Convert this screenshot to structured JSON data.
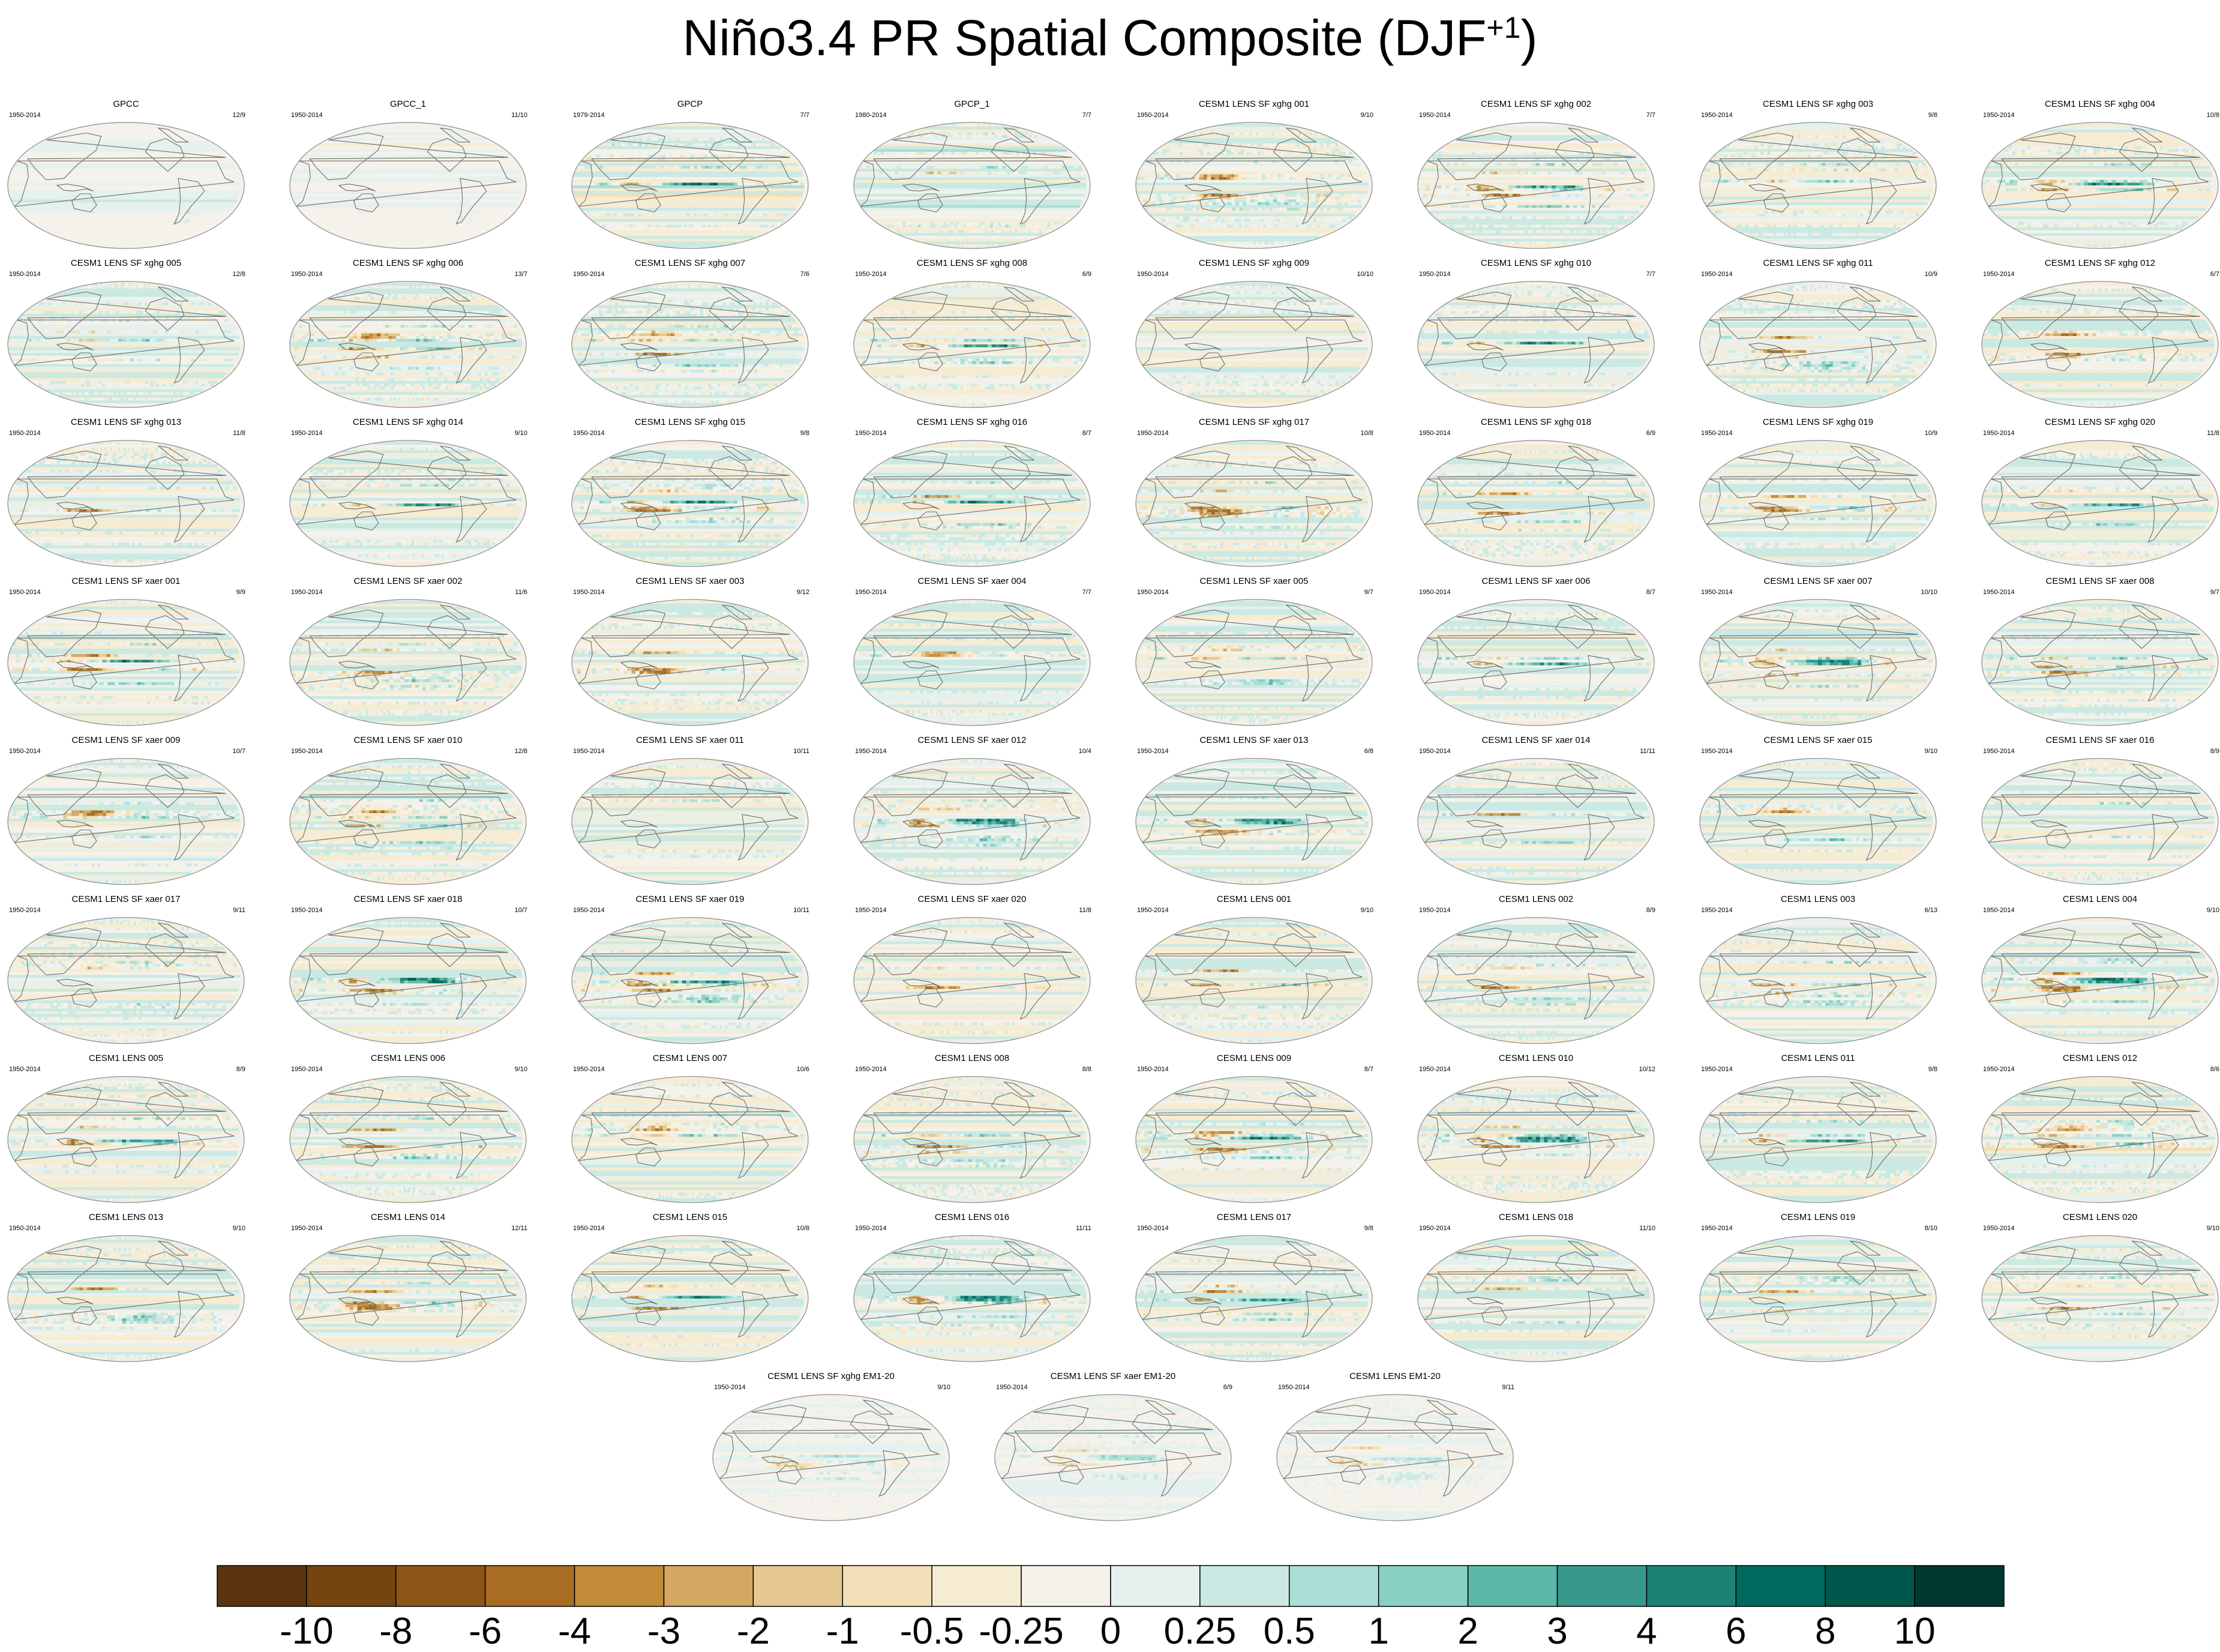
{
  "title": {
    "main": "Niño3.4 PR Spatial Composite (DJF",
    "superscript": "+1",
    "close": ")"
  },
  "chart_data": {
    "type": "heatmap",
    "description_variable": "PR composite",
    "colorbar": {
      "labels": [
        "-10",
        "-8",
        "-6",
        "-4",
        "-3",
        "-2",
        "-1",
        "-0.5",
        "-0.25",
        "0",
        "0.25",
        "0.5",
        "1",
        "2",
        "3",
        "4",
        "6",
        "8",
        "10"
      ],
      "colors": [
        "#5a3410",
        "#744411",
        "#8e5616",
        "#a86d22",
        "#c18b3a",
        "#d4a862",
        "#e4c88f",
        "#f1dfb7",
        "#f6ecd3",
        "#f4f2ea",
        "#e5f1ee",
        "#cbe9e3",
        "#aadfd6",
        "#89d0c4",
        "#5db8aa",
        "#36998c",
        "#1d8276",
        "#006a5e",
        "#00574c",
        "#00382f"
      ]
    },
    "panels": [
      {
        "title": "GPCC",
        "period": "1950-2014",
        "ratio": "12/9",
        "obs_land": true
      },
      {
        "title": "GPCC_1",
        "period": "1950-2014",
        "ratio": "11/10",
        "obs_land": true
      },
      {
        "title": "GPCP",
        "period": "1979-2014",
        "ratio": "7/7",
        "strength": 1.1
      },
      {
        "title": "GPCP_1",
        "period": "1980-2014",
        "ratio": "7/7",
        "strength": 1.1
      },
      {
        "title": "CESM1 LENS SF xghg 001",
        "period": "1950-2014",
        "ratio": "9/10"
      },
      {
        "title": "CESM1 LENS SF xghg 002",
        "period": "1950-2014",
        "ratio": "7/7"
      },
      {
        "title": "CESM1 LENS SF xghg 003",
        "period": "1950-2014",
        "ratio": "9/8"
      },
      {
        "title": "CESM1 LENS SF xghg 004",
        "period": "1950-2014",
        "ratio": "10/8"
      },
      {
        "title": "CESM1 LENS SF xghg 005",
        "period": "1950-2014",
        "ratio": "12/8"
      },
      {
        "title": "CESM1 LENS SF xghg 006",
        "period": "1950-2014",
        "ratio": "13/7"
      },
      {
        "title": "CESM1 LENS SF xghg 007",
        "period": "1950-2014",
        "ratio": "7/6"
      },
      {
        "title": "CESM1 LENS SF xghg 008",
        "period": "1950-2014",
        "ratio": "6/9"
      },
      {
        "title": "CESM1 LENS SF xghg 009",
        "period": "1950-2014",
        "ratio": "10/10"
      },
      {
        "title": "CESM1 LENS SF xghg 010",
        "period": "1950-2014",
        "ratio": "7/7"
      },
      {
        "title": "CESM1 LENS SF xghg 011",
        "period": "1950-2014",
        "ratio": "10/9"
      },
      {
        "title": "CESM1 LENS SF xghg 012",
        "period": "1950-2014",
        "ratio": "6/7"
      },
      {
        "title": "CESM1 LENS SF xghg 013",
        "period": "1950-2014",
        "ratio": "11/8"
      },
      {
        "title": "CESM1 LENS SF xghg 014",
        "period": "1950-2014",
        "ratio": "9/10"
      },
      {
        "title": "CESM1 LENS SF xghg 015",
        "period": "1950-2014",
        "ratio": "9/8"
      },
      {
        "title": "CESM1 LENS SF xghg 016",
        "period": "1950-2014",
        "ratio": "8/7"
      },
      {
        "title": "CESM1 LENS SF xghg 017",
        "period": "1950-2014",
        "ratio": "10/8"
      },
      {
        "title": "CESM1 LENS SF xghg 018",
        "period": "1950-2014",
        "ratio": "6/9"
      },
      {
        "title": "CESM1 LENS SF xghg 019",
        "period": "1950-2014",
        "ratio": "10/9"
      },
      {
        "title": "CESM1 LENS SF xghg 020",
        "period": "1950-2014",
        "ratio": "11/8"
      },
      {
        "title": "CESM1 LENS SF xaer 001",
        "period": "1950-2014",
        "ratio": "9/9"
      },
      {
        "title": "CESM1 LENS SF xaer 002",
        "period": "1950-2014",
        "ratio": "11/6"
      },
      {
        "title": "CESM1 LENS SF xaer 003",
        "period": "1950-2014",
        "ratio": "9/12"
      },
      {
        "title": "CESM1 LENS SF xaer 004",
        "period": "1950-2014",
        "ratio": "7/7"
      },
      {
        "title": "CESM1 LENS SF xaer 005",
        "period": "1950-2014",
        "ratio": "9/7"
      },
      {
        "title": "CESM1 LENS SF xaer 006",
        "period": "1950-2014",
        "ratio": "8/7"
      },
      {
        "title": "CESM1 LENS SF xaer 007",
        "period": "1950-2014",
        "ratio": "10/10"
      },
      {
        "title": "CESM1 LENS SF xaer 008",
        "period": "1950-2014",
        "ratio": "9/7"
      },
      {
        "title": "CESM1 LENS SF xaer 009",
        "period": "1950-2014",
        "ratio": "10/7"
      },
      {
        "title": "CESM1 LENS SF xaer 010",
        "period": "1950-2014",
        "ratio": "12/8"
      },
      {
        "title": "CESM1 LENS SF xaer 011",
        "period": "1950-2014",
        "ratio": "10/11"
      },
      {
        "title": "CESM1 LENS SF xaer 012",
        "period": "1950-2014",
        "ratio": "10/4"
      },
      {
        "title": "CESM1 LENS SF xaer 013",
        "period": "1950-2014",
        "ratio": "6/8"
      },
      {
        "title": "CESM1 LENS SF xaer 014",
        "period": "1950-2014",
        "ratio": "11/11"
      },
      {
        "title": "CESM1 LENS SF xaer 015",
        "period": "1950-2014",
        "ratio": "9/10"
      },
      {
        "title": "CESM1 LENS SF xaer 016",
        "period": "1950-2014",
        "ratio": "8/9"
      },
      {
        "title": "CESM1 LENS SF xaer 017",
        "period": "1950-2014",
        "ratio": "9/11"
      },
      {
        "title": "CESM1 LENS SF xaer 018",
        "period": "1950-2014",
        "ratio": "10/7"
      },
      {
        "title": "CESM1 LENS SF xaer 019",
        "period": "1950-2014",
        "ratio": "10/11"
      },
      {
        "title": "CESM1 LENS SF xaer 020",
        "period": "1950-2014",
        "ratio": "11/8"
      },
      {
        "title": "CESM1 LENS 001",
        "period": "1950-2014",
        "ratio": "9/10"
      },
      {
        "title": "CESM1 LENS 002",
        "period": "1950-2014",
        "ratio": "8/9"
      },
      {
        "title": "CESM1 LENS 003",
        "period": "1950-2014",
        "ratio": "6/13"
      },
      {
        "title": "CESM1 LENS 004",
        "period": "1950-2014",
        "ratio": "9/10"
      },
      {
        "title": "CESM1 LENS 005",
        "period": "1950-2014",
        "ratio": "8/9"
      },
      {
        "title": "CESM1 LENS 006",
        "period": "1950-2014",
        "ratio": "9/10"
      },
      {
        "title": "CESM1 LENS 007",
        "period": "1950-2014",
        "ratio": "10/6"
      },
      {
        "title": "CESM1 LENS 008",
        "period": "1950-2014",
        "ratio": "8/8"
      },
      {
        "title": "CESM1 LENS 009",
        "period": "1950-2014",
        "ratio": "8/7"
      },
      {
        "title": "CESM1 LENS 010",
        "period": "1950-2014",
        "ratio": "10/12"
      },
      {
        "title": "CESM1 LENS 011",
        "period": "1950-2014",
        "ratio": "9/8"
      },
      {
        "title": "CESM1 LENS 012",
        "period": "1950-2014",
        "ratio": "8/6"
      },
      {
        "title": "CESM1 LENS 013",
        "period": "1950-2014",
        "ratio": "9/10"
      },
      {
        "title": "CESM1 LENS 014",
        "period": "1950-2014",
        "ratio": "12/11"
      },
      {
        "title": "CESM1 LENS 015",
        "period": "1950-2014",
        "ratio": "10/8"
      },
      {
        "title": "CESM1 LENS 016",
        "period": "1950-2014",
        "ratio": "11/11"
      },
      {
        "title": "CESM1 LENS 017",
        "period": "1950-2014",
        "ratio": "9/8"
      },
      {
        "title": "CESM1 LENS 018",
        "period": "1950-2014",
        "ratio": "11/10"
      },
      {
        "title": "CESM1 LENS 019",
        "period": "1950-2014",
        "ratio": "8/10"
      },
      {
        "title": "CESM1 LENS 020",
        "period": "1950-2014",
        "ratio": "9/10"
      },
      {
        "title": "CESM1 LENS SF xghg EM1-20",
        "period": "1950-2014",
        "ratio": "9/10",
        "strength": 0.45
      },
      {
        "title": "CESM1 LENS SF xaer EM1-20",
        "period": "1950-2014",
        "ratio": "8/9",
        "strength": 0.45
      },
      {
        "title": "CESM1 LENS EM1-20",
        "period": "1950-2014",
        "ratio": "9/11",
        "strength": 0.45
      }
    ]
  }
}
